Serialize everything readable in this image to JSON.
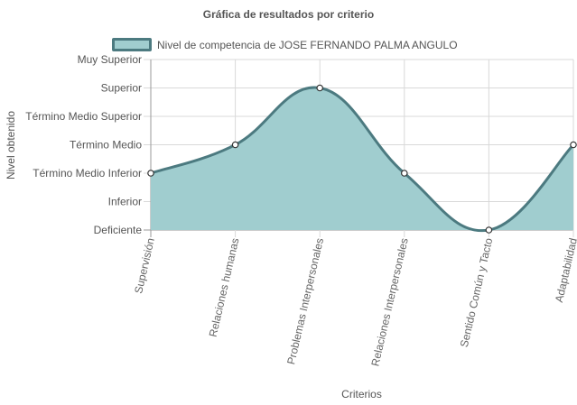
{
  "chart_data": {
    "type": "area",
    "title": "Gráfica de resultados por criterio",
    "xlabel": "Criterios",
    "ylabel": "Nivel obtenido",
    "y_levels": [
      "Deficiente",
      "Inferior",
      "Término Medio Inferior",
      "Término Medio",
      "Término Medio Superior",
      "Superior",
      "Muy Superior"
    ],
    "ylim": [
      0,
      6
    ],
    "categories": [
      "Supervisión",
      "Relaciones humanas",
      "Problemas Interpersonales",
      "Relaciones Interpersonales",
      "Sentido Común y Tacto",
      "Adaptabilidad"
    ],
    "series": [
      {
        "name": "Nivel de competencia de JOSE FERNANDO PALMA ANGULO",
        "values": [
          2,
          3,
          5,
          2,
          0,
          3
        ]
      }
    ],
    "grid": true,
    "legend": "top",
    "colors": {
      "fill": "#a0cdcf",
      "line": "#4c7a80",
      "grid": "#d9d9d9",
      "axis": "#999999"
    }
  }
}
